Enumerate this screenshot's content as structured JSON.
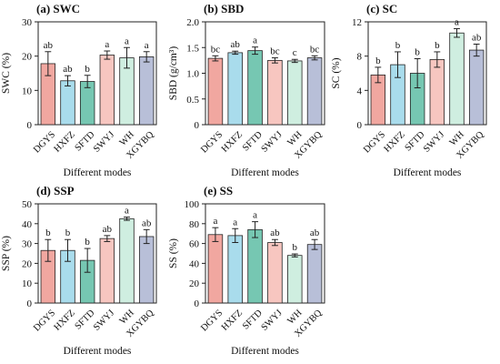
{
  "colors": [
    "#f1a7a0",
    "#a9dcec",
    "#76c7b2",
    "#f7c6c0",
    "#cfeee0",
    "#b8bfd8"
  ],
  "chart_data": [
    {
      "type": "bar",
      "title": "(a) SWC",
      "ylabel": "SWC (%)",
      "xlabel": "Different modes",
      "ylim": [
        0,
        30
      ],
      "yticks": [
        0,
        10,
        20,
        30
      ],
      "ytick_labels": [
        "0",
        "10",
        "20",
        "30"
      ],
      "categories": [
        "DGYS",
        "HXFZ",
        "SFTD",
        "SWYJ",
        "WH",
        "XGYBQ"
      ],
      "values": [
        17.8,
        12.8,
        12.6,
        20.3,
        19.5,
        19.8
      ],
      "errors": [
        3.5,
        1.5,
        1.8,
        1.2,
        3.0,
        1.5
      ],
      "labels": [
        "ab",
        "ab",
        "b",
        "a",
        "a",
        "a"
      ]
    },
    {
      "type": "bar",
      "title": "(b) SBD",
      "ylabel": "SBD (g/cm³)",
      "xlabel": "Different modes",
      "ylim": [
        0,
        2.0
      ],
      "yticks": [
        0,
        0.5,
        1.0,
        1.5,
        2.0
      ],
      "ytick_labels": [
        "0",
        "0.5",
        "1.0",
        "1.5",
        "2.0"
      ],
      "categories": [
        "DGYS",
        "HXFZ",
        "SFTD",
        "SWYJ",
        "WH",
        "XGYBQ"
      ],
      "values": [
        1.29,
        1.4,
        1.44,
        1.25,
        1.24,
        1.3
      ],
      "errors": [
        0.05,
        0.03,
        0.07,
        0.05,
        0.03,
        0.04
      ],
      "labels": [
        "bc",
        "ab",
        "a",
        "bc",
        "c",
        "bc"
      ]
    },
    {
      "type": "bar",
      "title": "(c) SC",
      "ylabel": "SC (%)",
      "xlabel": "Different modes",
      "ylim": [
        0,
        12
      ],
      "yticks": [
        0,
        4,
        8,
        12
      ],
      "ytick_labels": [
        "0",
        "4",
        "8",
        "12"
      ],
      "categories": [
        "DGYS",
        "HXFZ",
        "SFTD",
        "SWYJ",
        "WH",
        "XGYBQ"
      ],
      "values": [
        5.8,
        7.0,
        6.0,
        7.6,
        10.7,
        8.7
      ],
      "errors": [
        0.9,
        1.5,
        1.7,
        0.9,
        0.5,
        0.7
      ],
      "labels": [
        "b",
        "b",
        "b",
        "b",
        "a",
        "ab"
      ]
    },
    {
      "type": "bar",
      "title": "(d) SSP",
      "ylabel": "SSP (%)",
      "xlabel": "Different modes",
      "ylim": [
        0,
        50
      ],
      "yticks": [
        0,
        10,
        20,
        30,
        40,
        50
      ],
      "ytick_labels": [
        "0",
        "10",
        "20",
        "30",
        "40",
        "50"
      ],
      "categories": [
        "DGYS",
        "HXFZ",
        "SFTD",
        "SWYJ",
        "WH",
        "XGYBQ"
      ],
      "values": [
        26.5,
        26.5,
        21.5,
        32.5,
        42.5,
        33.5
      ],
      "errors": [
        5.5,
        5.5,
        6.0,
        1.5,
        0.8,
        3.5
      ],
      "labels": [
        "b",
        "b",
        "b",
        "ab",
        "a",
        "ab"
      ]
    },
    {
      "type": "bar",
      "title": "(e) SS",
      "ylabel": "SS (%)",
      "xlabel": "Different modes",
      "ylim": [
        0,
        100
      ],
      "yticks": [
        0,
        20,
        40,
        60,
        80,
        100
      ],
      "ytick_labels": [
        "0",
        "20",
        "40",
        "60",
        "80",
        "100"
      ],
      "categories": [
        "DGYS",
        "HXFZ",
        "SFTD",
        "SWYJ",
        "WH",
        "XGYBQ"
      ],
      "values": [
        69,
        68,
        74,
        61,
        48,
        59
      ],
      "errors": [
        7,
        7,
        8,
        3,
        1.5,
        5
      ],
      "labels": [
        "a",
        "a",
        "a",
        "ab",
        "b",
        "ab"
      ]
    }
  ]
}
